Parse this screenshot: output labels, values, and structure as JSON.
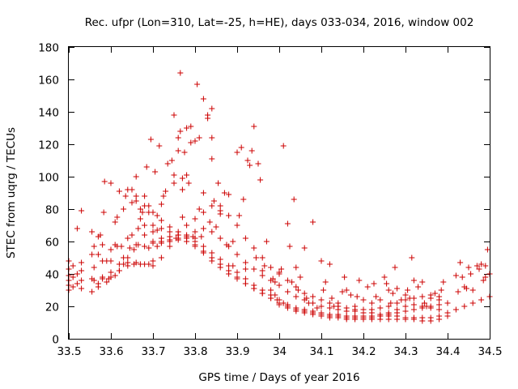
{
  "chart_data": {
    "type": "scatter",
    "title": "Rec. ufpr (Lon=310, Lat=-25, h=HE), days 033-034, 2016, window 002",
    "xlabel": "GPS time / Days of year 2016",
    "ylabel": "STEC from uqrg / TECUs",
    "xlim": [
      33.5,
      34.5
    ],
    "ylim": [
      0,
      180
    ],
    "xticks": [
      33.5,
      33.6,
      33.7,
      33.8,
      33.9,
      34,
      34.1,
      34.2,
      34.3,
      34.4,
      34.5
    ],
    "xtick_labels": [
      "33.5",
      "33.6",
      "33.7",
      "33.8",
      "33.9",
      "34",
      "34.1",
      "34.2",
      "34.3",
      "34.4",
      "34.5"
    ],
    "yticks": [
      0,
      20,
      40,
      60,
      80,
      100,
      120,
      140,
      160,
      180
    ],
    "ytick_labels": [
      "0",
      "20",
      "40",
      "60",
      "80",
      "100",
      "120",
      "140",
      "160",
      "180"
    ],
    "grid": false,
    "marker": "plus",
    "color": "#cc0000",
    "points": [
      [
        33.5,
        30
      ],
      [
        33.5,
        33
      ],
      [
        33.5,
        36
      ],
      [
        33.5,
        39
      ],
      [
        33.5,
        43
      ],
      [
        33.5,
        48
      ],
      [
        33.51,
        32
      ],
      [
        33.51,
        38
      ],
      [
        33.51,
        45
      ],
      [
        33.52,
        68
      ],
      [
        33.52,
        34
      ],
      [
        33.52,
        40
      ],
      [
        33.53,
        79
      ],
      [
        33.53,
        31
      ],
      [
        33.53,
        36
      ],
      [
        33.53,
        42
      ],
      [
        33.53,
        47
      ],
      [
        33.555,
        29
      ],
      [
        33.555,
        37
      ],
      [
        33.555,
        52
      ],
      [
        33.555,
        66
      ],
      [
        33.56,
        36
      ],
      [
        33.56,
        44
      ],
      [
        33.56,
        57
      ],
      [
        33.57,
        32
      ],
      [
        33.57,
        34
      ],
      [
        33.57,
        52
      ],
      [
        33.57,
        63
      ],
      [
        33.575,
        64
      ],
      [
        33.58,
        38
      ],
      [
        33.58,
        48
      ],
      [
        33.58,
        58
      ],
      [
        33.583,
        78
      ],
      [
        33.585,
        97
      ],
      [
        33.59,
        35
      ],
      [
        33.59,
        48
      ],
      [
        33.595,
        37
      ],
      [
        33.6,
        96
      ],
      [
        33.6,
        55
      ],
      [
        33.6,
        48
      ],
      [
        33.6,
        41
      ],
      [
        33.61,
        39
      ],
      [
        33.61,
        58
      ],
      [
        33.61,
        72
      ],
      [
        33.615,
        57
      ],
      [
        33.615,
        75
      ],
      [
        33.62,
        91
      ],
      [
        33.62,
        42
      ],
      [
        33.625,
        57
      ],
      [
        33.63,
        46
      ],
      [
        33.63,
        50
      ],
      [
        33.63,
        80
      ],
      [
        33.635,
        88
      ],
      [
        33.64,
        45
      ],
      [
        33.64,
        62
      ],
      [
        33.645,
        56
      ],
      [
        33.65,
        92
      ],
      [
        33.65,
        84
      ],
      [
        33.65,
        64
      ],
      [
        33.655,
        55
      ],
      [
        33.655,
        46
      ],
      [
        33.66,
        85
      ],
      [
        33.66,
        100
      ],
      [
        33.665,
        58
      ],
      [
        33.665,
        68
      ],
      [
        33.67,
        74
      ],
      [
        33.67,
        80
      ],
      [
        33.67,
        46
      ],
      [
        33.675,
        78
      ],
      [
        33.68,
        57
      ],
      [
        33.68,
        70
      ],
      [
        33.68,
        88
      ],
      [
        33.685,
        106
      ],
      [
        33.69,
        56
      ],
      [
        33.69,
        78
      ],
      [
        33.69,
        82
      ],
      [
        33.69,
        46
      ],
      [
        33.695,
        123
      ],
      [
        33.7,
        70
      ],
      [
        33.7,
        60
      ],
      [
        33.7,
        48
      ],
      [
        33.705,
        103
      ],
      [
        33.71,
        67
      ],
      [
        33.71,
        76
      ],
      [
        33.71,
        57
      ],
      [
        33.715,
        119
      ],
      [
        33.72,
        59
      ],
      [
        33.72,
        83
      ],
      [
        33.725,
        88
      ],
      [
        33.73,
        91
      ],
      [
        33.735,
        108
      ],
      [
        33.74,
        60
      ],
      [
        33.745,
        110
      ],
      [
        33.75,
        96
      ],
      [
        33.75,
        101
      ],
      [
        33.75,
        138
      ],
      [
        33.755,
        62
      ],
      [
        33.76,
        116
      ],
      [
        33.76,
        124
      ],
      [
        33.765,
        164
      ],
      [
        33.765,
        128
      ],
      [
        33.77,
        75
      ],
      [
        33.77,
        99
      ],
      [
        33.77,
        92
      ],
      [
        33.775,
        115
      ],
      [
        33.78,
        130
      ],
      [
        33.78,
        101
      ],
      [
        33.785,
        96
      ],
      [
        33.79,
        131
      ],
      [
        33.79,
        121
      ],
      [
        33.795,
        63
      ],
      [
        33.8,
        122
      ],
      [
        33.8,
        66
      ],
      [
        33.8,
        62
      ],
      [
        33.805,
        157
      ],
      [
        33.81,
        124
      ],
      [
        33.81,
        80
      ],
      [
        33.815,
        63
      ],
      [
        33.82,
        148
      ],
      [
        33.82,
        90
      ],
      [
        33.83,
        138
      ],
      [
        33.83,
        136
      ],
      [
        33.835,
        72
      ],
      [
        33.84,
        142
      ],
      [
        33.84,
        111
      ],
      [
        33.84,
        124
      ],
      [
        33.845,
        85
      ],
      [
        33.85,
        69
      ],
      [
        33.855,
        96
      ],
      [
        33.86,
        79
      ],
      [
        33.86,
        77
      ],
      [
        33.87,
        90
      ],
      [
        33.875,
        58
      ],
      [
        33.88,
        89
      ],
      [
        33.89,
        45
      ],
      [
        33.89,
        60
      ],
      [
        33.9,
        115
      ],
      [
        33.905,
        76
      ],
      [
        33.91,
        118
      ],
      [
        33.915,
        86
      ],
      [
        33.92,
        43
      ],
      [
        33.925,
        110
      ],
      [
        33.93,
        107
      ],
      [
        33.935,
        116
      ],
      [
        33.94,
        131
      ],
      [
        33.945,
        50
      ],
      [
        33.95,
        108
      ],
      [
        33.955,
        98
      ],
      [
        33.96,
        42
      ],
      [
        33.965,
        45
      ],
      [
        33.97,
        60
      ],
      [
        33.98,
        30
      ],
      [
        33.985,
        37
      ],
      [
        33.99,
        27
      ],
      [
        33.99,
        35
      ],
      [
        33.995,
        24
      ],
      [
        34.0,
        41
      ],
      [
        34.005,
        43
      ],
      [
        34.01,
        119
      ],
      [
        34.01,
        22
      ],
      [
        34.02,
        71
      ],
      [
        34.025,
        57
      ],
      [
        34.03,
        35
      ],
      [
        34.035,
        86
      ],
      [
        34.04,
        44
      ],
      [
        34.045,
        30
      ],
      [
        34.05,
        38
      ],
      [
        34.06,
        56
      ],
      [
        34.065,
        25
      ],
      [
        34.07,
        22
      ],
      [
        34.08,
        72
      ],
      [
        34.09,
        19
      ],
      [
        34.1,
        48
      ],
      [
        34.105,
        30
      ],
      [
        34.11,
        35
      ],
      [
        34.12,
        46
      ],
      [
        34.125,
        25
      ],
      [
        34.13,
        20
      ],
      [
        34.14,
        22
      ],
      [
        34.15,
        29
      ],
      [
        34.155,
        38
      ],
      [
        34.16,
        30
      ],
      [
        34.17,
        27
      ],
      [
        34.18,
        20
      ],
      [
        34.185,
        26
      ],
      [
        34.19,
        36
      ],
      [
        34.2,
        24
      ],
      [
        34.21,
        32
      ],
      [
        34.22,
        22
      ],
      [
        34.225,
        34
      ],
      [
        34.23,
        26
      ],
      [
        34.24,
        24
      ],
      [
        34.25,
        38
      ],
      [
        34.255,
        34
      ],
      [
        34.26,
        30
      ],
      [
        34.265,
        22
      ],
      [
        34.27,
        28
      ],
      [
        34.275,
        44
      ],
      [
        34.28,
        31
      ],
      [
        34.29,
        24
      ],
      [
        34.3,
        27
      ],
      [
        34.305,
        30
      ],
      [
        34.31,
        25
      ],
      [
        34.315,
        50
      ],
      [
        34.32,
        36
      ],
      [
        34.33,
        32
      ],
      [
        34.34,
        35
      ],
      [
        34.345,
        22
      ],
      [
        34.35,
        20
      ],
      [
        34.36,
        27
      ],
      [
        34.37,
        28
      ],
      [
        34.38,
        26
      ],
      [
        34.385,
        30
      ],
      [
        34.39,
        35
      ],
      [
        34.42,
        39
      ],
      [
        34.425,
        29
      ],
      [
        34.43,
        47
      ],
      [
        34.435,
        38
      ],
      [
        34.44,
        32
      ],
      [
        34.445,
        31
      ],
      [
        34.45,
        44
      ],
      [
        34.455,
        40
      ],
      [
        34.46,
        30
      ],
      [
        34.47,
        45
      ],
      [
        34.475,
        43
      ],
      [
        34.48,
        46
      ],
      [
        34.485,
        36
      ],
      [
        34.49,
        45
      ],
      [
        34.49,
        38
      ],
      [
        34.495,
        55
      ],
      [
        34.5,
        40
      ],
      [
        33.72,
        62
      ],
      [
        33.74,
        63
      ],
      [
        33.76,
        64
      ],
      [
        33.78,
        63
      ],
      [
        33.8,
        60
      ],
      [
        33.82,
        57
      ],
      [
        33.84,
        53
      ],
      [
        33.86,
        49
      ],
      [
        33.88,
        45
      ],
      [
        33.9,
        41
      ],
      [
        33.92,
        37
      ],
      [
        33.94,
        33
      ],
      [
        33.96,
        30
      ],
      [
        33.98,
        27
      ],
      [
        34.0,
        24
      ],
      [
        34.02,
        21
      ],
      [
        34.04,
        19
      ],
      [
        34.06,
        18
      ],
      [
        34.08,
        17
      ],
      [
        34.1,
        16
      ],
      [
        34.12,
        15
      ],
      [
        34.14,
        15
      ],
      [
        34.16,
        14
      ],
      [
        34.18,
        14
      ],
      [
        34.2,
        14
      ],
      [
        34.22,
        14
      ],
      [
        34.24,
        14
      ],
      [
        34.26,
        14
      ],
      [
        34.28,
        14
      ],
      [
        34.3,
        13
      ],
      [
        34.32,
        13
      ],
      [
        34.34,
        13
      ],
      [
        34.36,
        13
      ],
      [
        34.38,
        14
      ],
      [
        34.4,
        16
      ],
      [
        34.42,
        18
      ],
      [
        34.44,
        20
      ],
      [
        34.46,
        22
      ],
      [
        34.48,
        24
      ],
      [
        34.5,
        26
      ],
      [
        33.7,
        59
      ],
      [
        33.72,
        60
      ],
      [
        33.74,
        61
      ],
      [
        33.76,
        62
      ],
      [
        33.78,
        60
      ],
      [
        33.8,
        57
      ],
      [
        33.82,
        54
      ],
      [
        33.84,
        50
      ],
      [
        33.86,
        46
      ],
      [
        33.88,
        42
      ],
      [
        33.9,
        38
      ],
      [
        33.92,
        34
      ],
      [
        33.94,
        31
      ],
      [
        33.96,
        28
      ],
      [
        33.98,
        25
      ],
      [
        34.0,
        22
      ],
      [
        34.02,
        20
      ],
      [
        34.04,
        18
      ],
      [
        34.06,
        17
      ],
      [
        34.08,
        16
      ],
      [
        34.1,
        15
      ],
      [
        34.12,
        14
      ],
      [
        34.14,
        14
      ],
      [
        34.16,
        13
      ],
      [
        34.18,
        13
      ],
      [
        34.2,
        13
      ],
      [
        34.22,
        12
      ],
      [
        34.24,
        12
      ],
      [
        34.26,
        12
      ],
      [
        34.28,
        12
      ],
      [
        34.3,
        12
      ],
      [
        34.32,
        12
      ],
      [
        34.34,
        11
      ],
      [
        34.36,
        11
      ],
      [
        34.38,
        12
      ],
      [
        34.4,
        14
      ],
      [
        33.62,
        46
      ],
      [
        33.64,
        47
      ],
      [
        33.66,
        47
      ],
      [
        33.68,
        46
      ],
      [
        33.7,
        45
      ],
      [
        33.72,
        50
      ],
      [
        33.74,
        57
      ],
      [
        33.76,
        61
      ],
      [
        33.78,
        64
      ],
      [
        33.8,
        66
      ],
      [
        33.82,
        68
      ],
      [
        33.84,
        66
      ],
      [
        33.86,
        62
      ],
      [
        33.88,
        57
      ],
      [
        33.9,
        52
      ],
      [
        33.92,
        47
      ],
      [
        33.94,
        43
      ],
      [
        33.96,
        39
      ],
      [
        33.98,
        36
      ],
      [
        34.0,
        33
      ],
      [
        34.02,
        29
      ],
      [
        34.04,
        26
      ],
      [
        34.06,
        24
      ],
      [
        34.08,
        22
      ],
      [
        34.1,
        20
      ],
      [
        34.12,
        19
      ],
      [
        34.14,
        18
      ],
      [
        34.16,
        17
      ],
      [
        34.18,
        17
      ],
      [
        34.2,
        16
      ],
      [
        34.22,
        16
      ],
      [
        34.24,
        15
      ],
      [
        34.26,
        15
      ],
      [
        34.28,
        16
      ],
      [
        34.3,
        17
      ],
      [
        34.32,
        18
      ],
      [
        34.34,
        19
      ],
      [
        34.36,
        20
      ],
      [
        34.38,
        21
      ],
      [
        34.4,
        22
      ],
      [
        33.58,
        37
      ],
      [
        33.6,
        38
      ],
      [
        33.62,
        42
      ],
      [
        33.64,
        50
      ],
      [
        33.66,
        58
      ],
      [
        33.68,
        64
      ],
      [
        33.7,
        66
      ],
      [
        33.72,
        68
      ],
      [
        33.74,
        66
      ],
      [
        33.76,
        64
      ],
      [
        33.78,
        62
      ],
      [
        33.8,
        58
      ],
      [
        33.82,
        53
      ],
      [
        33.84,
        48
      ],
      [
        33.86,
        44
      ],
      [
        33.88,
        40
      ],
      [
        33.9,
        37
      ],
      [
        33.92,
        34
      ],
      [
        33.94,
        31
      ],
      [
        33.96,
        28
      ],
      [
        33.98,
        25
      ],
      [
        34.0,
        21
      ],
      [
        34.02,
        19
      ],
      [
        34.04,
        17
      ],
      [
        34.06,
        16
      ],
      [
        34.08,
        15
      ],
      [
        34.1,
        14
      ],
      [
        34.12,
        13
      ],
      [
        34.14,
        13
      ],
      [
        34.16,
        12
      ],
      [
        34.18,
        12
      ],
      [
        34.2,
        12
      ],
      [
        34.22,
        13
      ],
      [
        34.24,
        14
      ],
      [
        34.26,
        16
      ],
      [
        34.28,
        18
      ],
      [
        34.3,
        20
      ],
      [
        34.32,
        21
      ],
      [
        34.34,
        20
      ],
      [
        34.36,
        19
      ],
      [
        34.38,
        18
      ],
      [
        33.64,
        92
      ],
      [
        33.66,
        88
      ],
      [
        33.68,
        82
      ],
      [
        33.7,
        78
      ],
      [
        33.72,
        73
      ],
      [
        33.74,
        69
      ],
      [
        33.76,
        66
      ],
      [
        33.78,
        70
      ],
      [
        33.8,
        74
      ],
      [
        33.82,
        78
      ],
      [
        33.84,
        82
      ],
      [
        33.86,
        82
      ],
      [
        33.88,
        76
      ],
      [
        33.9,
        70
      ],
      [
        33.92,
        62
      ],
      [
        33.94,
        56
      ],
      [
        33.96,
        50
      ],
      [
        33.98,
        44
      ],
      [
        34.0,
        40
      ],
      [
        34.02,
        36
      ],
      [
        34.04,
        32
      ],
      [
        34.06,
        28
      ],
      [
        34.08,
        26
      ],
      [
        34.1,
        24
      ],
      [
        34.12,
        22
      ],
      [
        34.14,
        20
      ],
      [
        34.16,
        19
      ],
      [
        34.18,
        18
      ],
      [
        34.2,
        18
      ],
      [
        34.22,
        18
      ],
      [
        34.24,
        19
      ],
      [
        34.26,
        20
      ],
      [
        34.28,
        22
      ],
      [
        34.3,
        24
      ],
      [
        34.32,
        25
      ],
      [
        34.34,
        26
      ],
      [
        34.36,
        25
      ],
      [
        34.38,
        24
      ]
    ]
  }
}
